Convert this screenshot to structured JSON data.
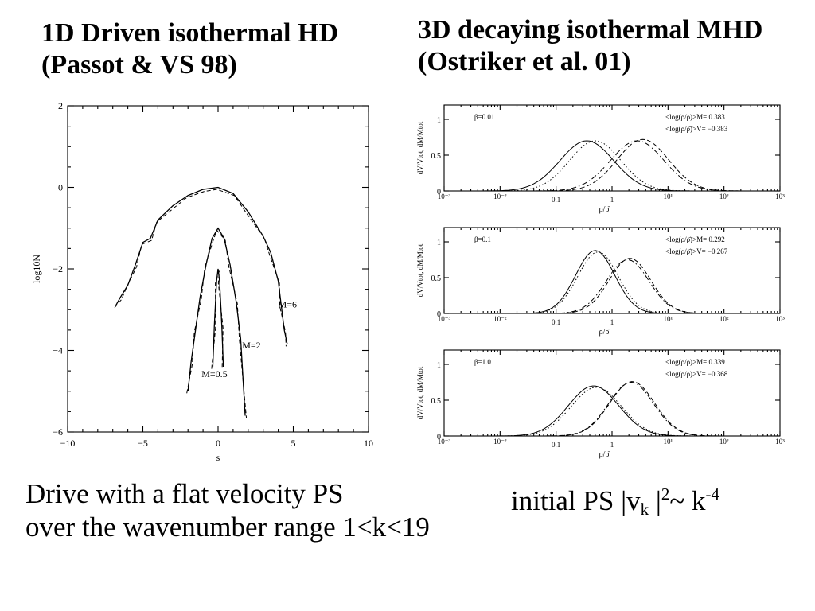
{
  "titles": {
    "left_line1": "1D Driven isothermal HD",
    "left_line2": "(Passot & VS 98)",
    "right_line1": "3D decaying isothermal MHD",
    "right_line2": "(Ostriker et al. 01)"
  },
  "captions": {
    "left_line1": "Drive with a flat velocity PS",
    "left_line2": "over the wavenumber range 1<k<19",
    "right_prefix": "initial PS |v",
    "right_sub": "k",
    "right_bar": " |",
    "right_sup1": "2",
    "right_mid": "~ k",
    "right_sup2": "-4"
  },
  "chart_data": [
    {
      "type": "line",
      "xlabel": "s",
      "ylabel": "log10N",
      "xlim": [
        -10,
        10
      ],
      "ylim": [
        -6,
        2
      ],
      "xticks": [
        -10,
        -5,
        0,
        5,
        10
      ],
      "yticks": [
        2,
        0,
        -2,
        -4,
        -6
      ],
      "series": [
        {
          "name": "M=6",
          "style": "solid",
          "x": [
            -6.8,
            -6.5,
            -6.0,
            -5.5,
            -5.0,
            -4.5,
            -4.0,
            -3.0,
            -2.0,
            -1.0,
            0.0,
            1.0,
            2.0,
            3.0,
            3.5,
            4.0,
            4.2,
            4.4,
            4.6
          ],
          "y": [
            -2.9,
            -2.7,
            -2.4,
            -1.9,
            -1.35,
            -1.25,
            -0.8,
            -0.45,
            -0.2,
            -0.05,
            0.0,
            -0.15,
            -0.6,
            -1.2,
            -1.6,
            -2.3,
            -2.9,
            -3.5,
            -3.85
          ]
        },
        {
          "name": "M=2",
          "style": "solid",
          "x": [
            -2.0,
            -1.8,
            -1.5,
            -1.2,
            -0.8,
            -0.4,
            0.0,
            0.4,
            0.8,
            1.2,
            1.5,
            1.8
          ],
          "y": [
            -5.0,
            -4.3,
            -3.5,
            -2.7,
            -1.9,
            -1.25,
            -1.0,
            -1.25,
            -1.9,
            -2.8,
            -3.7,
            -5.6
          ]
        },
        {
          "name": "M=0.5",
          "style": "solid",
          "x": [
            -0.35,
            -0.25,
            -0.1,
            0.0,
            0.1,
            0.25,
            0.35
          ],
          "y": [
            -4.4,
            -3.4,
            -2.3,
            -2.0,
            -2.3,
            -3.4,
            -4.4
          ]
        }
      ],
      "annotations": [
        "M=6",
        "M=2",
        "M=0.5"
      ]
    },
    {
      "type": "line",
      "xscale": "log",
      "xlabel": "ρ/ρ̄",
      "ylabel": "dV/Vtot, dM/Mtot",
      "xlim": [
        0.001,
        1000
      ],
      "ylim": [
        0,
        1.2
      ],
      "xtick_labels": [
        "10⁻³",
        "10⁻²",
        "0.1",
        "1",
        "10¹",
        "10²",
        "10³"
      ],
      "ytick_labels": [
        "0",
        "0.5",
        "1"
      ],
      "panels": [
        {
          "beta_label": "β=0.01",
          "stat_m": "<log(ρ/ρ̄)>M=  0.383",
          "stat_v": "<log(ρ/ρ̄)>V= −0.383",
          "series": [
            {
              "style": "solid",
              "mu": -0.45,
              "sigma": 0.48,
              "peak": 0.7
            },
            {
              "style": "dotted",
              "mu": -0.3,
              "sigma": 0.46,
              "peak": 0.7
            },
            {
              "style": "dashdot",
              "mu": 0.45,
              "sigma": 0.48,
              "peak": 0.7
            },
            {
              "style": "dashed",
              "mu": 0.55,
              "sigma": 0.46,
              "peak": 0.72
            }
          ]
        },
        {
          "beta_label": "β=0.1",
          "stat_m": "<log(ρ/ρ̄)>M=  0.292",
          "stat_v": "<log(ρ/ρ̄)>V= −0.267",
          "series": [
            {
              "style": "solid",
              "mu": -0.3,
              "sigma": 0.35,
              "peak": 0.88
            },
            {
              "style": "dotted",
              "mu": -0.25,
              "sigma": 0.36,
              "peak": 0.86
            },
            {
              "style": "dashdot",
              "mu": 0.28,
              "sigma": 0.38,
              "peak": 0.75
            },
            {
              "style": "dashed",
              "mu": 0.32,
              "sigma": 0.37,
              "peak": 0.77
            }
          ]
        },
        {
          "beta_label": "β=1.0",
          "stat_m": "<log(ρ/ρ̄)>M=  0.339",
          "stat_v": "<log(ρ/ρ̄)>V= −0.368",
          "series": [
            {
              "style": "solid",
              "mu": -0.33,
              "sigma": 0.45,
              "peak": 0.7
            },
            {
              "style": "dotted",
              "mu": -0.28,
              "sigma": 0.45,
              "peak": 0.68
            },
            {
              "style": "dashdot",
              "mu": 0.34,
              "sigma": 0.4,
              "peak": 0.75
            },
            {
              "style": "dashed",
              "mu": 0.36,
              "sigma": 0.4,
              "peak": 0.76
            }
          ]
        }
      ]
    }
  ]
}
